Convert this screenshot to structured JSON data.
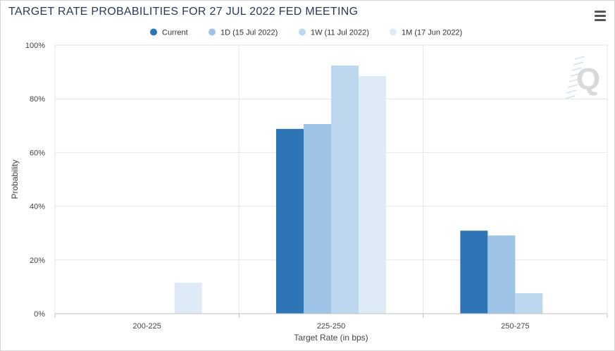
{
  "header": {
    "title": "TARGET RATE PROBABILITIES FOR 27 JUL 2022 FED MEETING"
  },
  "toolbar": {
    "menu_icon": "hamburger-menu-icon"
  },
  "watermark": {
    "text": "Q",
    "icon": "quikstrike-logo-icon"
  },
  "chart_data": {
    "type": "bar",
    "categories": [
      "200-225",
      "225-250",
      "250-275"
    ],
    "series": [
      {
        "name": "Current",
        "color": "#2e75b6",
        "values": [
          0,
          68.8,
          30.9
        ]
      },
      {
        "name": "1D (15 Jul 2022)",
        "color": "#9dc3e6",
        "values": [
          0,
          70.6,
          29.1
        ]
      },
      {
        "name": "1W (11 Jul 2022)",
        "color": "#bdd7ee",
        "values": [
          0,
          92.4,
          7.6
        ]
      },
      {
        "name": "1M (17 Jun 2022)",
        "color": "#deebf7",
        "values": [
          11.5,
          88.5,
          0
        ]
      }
    ],
    "xlabel": "Target Rate (in bps)",
    "ylabel": "Probability",
    "ylim": [
      0,
      100
    ],
    "yticks": [
      "0%",
      "20%",
      "40%",
      "60%",
      "80%",
      "100%"
    ],
    "grid": true,
    "legend_position": "top-center"
  }
}
